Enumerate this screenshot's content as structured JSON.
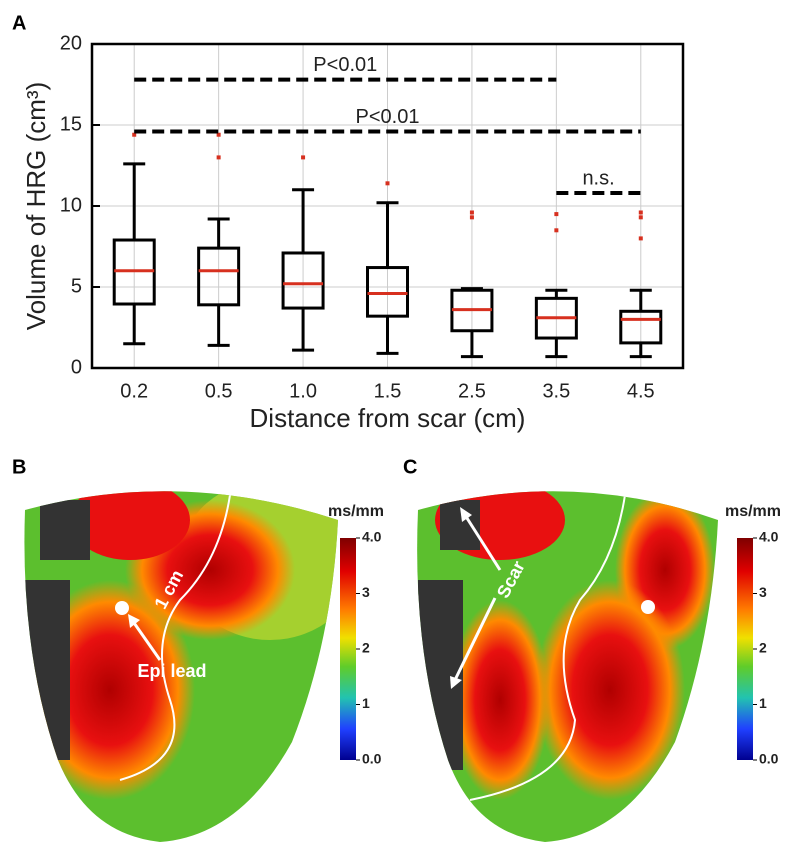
{
  "chart_data": [
    {
      "type": "box",
      "panel": "A",
      "ylabel": "Volume of HRG (cm³)",
      "xlabel": "Distance from scar (cm)",
      "categories": [
        "0.2",
        "0.5",
        "1.0",
        "1.5",
        "2.5",
        "3.5",
        "4.5"
      ],
      "boxes": [
        {
          "whislo": 1.5,
          "q1": 3.95,
          "med": 6.0,
          "q3": 7.9,
          "whishi": 12.6,
          "fliers": [
            14.4
          ]
        },
        {
          "whislo": 1.4,
          "q1": 3.9,
          "med": 6.0,
          "q3": 7.4,
          "whishi": 9.2,
          "fliers": [
            14.4,
            13.0
          ]
        },
        {
          "whislo": 1.1,
          "q1": 3.7,
          "med": 5.2,
          "q3": 7.1,
          "whishi": 11.0,
          "fliers": [
            13.0
          ]
        },
        {
          "whislo": 0.9,
          "q1": 3.2,
          "med": 4.6,
          "q3": 6.2,
          "whishi": 10.2,
          "fliers": [
            11.4
          ]
        },
        {
          "whislo": 0.7,
          "q1": 2.3,
          "med": 3.6,
          "q3": 4.8,
          "whishi": 4.9,
          "fliers": [
            9.6,
            9.3
          ]
        },
        {
          "whislo": 0.7,
          "q1": 1.85,
          "med": 3.1,
          "q3": 4.3,
          "whishi": 4.8,
          "fliers": [
            9.5,
            8.5
          ]
        },
        {
          "whislo": 0.7,
          "q1": 1.55,
          "med": 3.0,
          "q3": 3.5,
          "whishi": 4.8,
          "fliers": [
            9.6,
            9.3,
            8.0
          ]
        }
      ],
      "box_color": "#000000",
      "median_color": "#d7301f",
      "flier_color": "#d7301f",
      "ylim": [
        0,
        20
      ],
      "yticks": [
        0,
        5,
        10,
        15,
        20
      ],
      "grid": true,
      "annotations": [
        {
          "text": "P<0.01",
          "y": 17.8,
          "from": "0.2",
          "to": "3.5"
        },
        {
          "text": "P<0.01",
          "y": 14.6,
          "from": "0.2",
          "to": "4.5"
        },
        {
          "text": "n.s.",
          "y": 10.8,
          "from": "3.5",
          "to": "4.5"
        }
      ]
    },
    {
      "type": "colorbar",
      "panel": "B",
      "label": "ms/mm",
      "ylim": [
        0,
        4
      ],
      "yticks": [
        {
          "value": 4,
          "label": "4.0"
        },
        3,
        2,
        1,
        {
          "value": 0,
          "label": "0.0"
        }
      ],
      "annotations": [
        "1 cm",
        "Epi lead"
      ]
    },
    {
      "type": "colorbar",
      "panel": "C",
      "label": "ms/mm",
      "ylim": [
        0,
        4
      ],
      "yticks": [
        {
          "value": 4,
          "label": "4.0"
        },
        3,
        2,
        1,
        {
          "value": 0,
          "label": "0.0"
        }
      ],
      "annotations": [
        "Scar"
      ]
    }
  ]
}
